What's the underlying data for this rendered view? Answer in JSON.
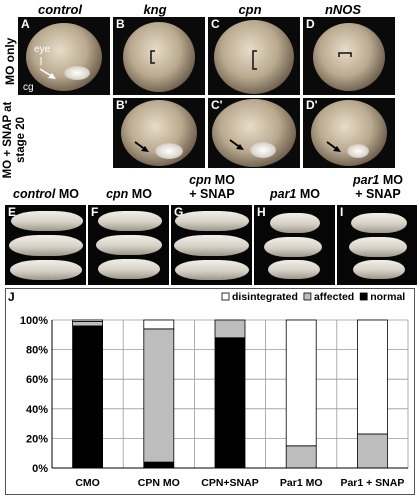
{
  "top_columns": [
    {
      "label": "control"
    },
    {
      "label": "kng"
    },
    {
      "label": "cpn"
    },
    {
      "label": "nNOS"
    }
  ],
  "row_labels": [
    "MO only",
    "MO + SNAP at stage 20"
  ],
  "panels_top": [
    "A",
    "B",
    "C",
    "D"
  ],
  "panels_mid": [
    "B'",
    "C'",
    "D'"
  ],
  "annotations": {
    "eye": "eye",
    "cg": "cg"
  },
  "bottom_panels": [
    {
      "letter": "E",
      "title_italic": "control",
      "title_rest": " MO",
      "line2": ""
    },
    {
      "letter": "F",
      "title_italic": "cpn",
      "title_rest": " MO",
      "line2": ""
    },
    {
      "letter": "G",
      "title_italic": "cpn",
      "title_rest": " MO",
      "line2": "+ SNAP"
    },
    {
      "letter": "H",
      "title_italic": "par1",
      "title_rest": " MO",
      "line2": ""
    },
    {
      "letter": "I",
      "title_italic": "par1",
      "title_rest": " MO",
      "line2": "+ SNAP"
    }
  ],
  "chart_letter": "J",
  "chart_data": {
    "type": "bar",
    "stacked": true,
    "categories": [
      "CMO",
      "CPN MO",
      "CPN+SNAP",
      "Par1 MO",
      "Par1 + SNAP"
    ],
    "series": [
      {
        "name": "normal",
        "color": "#000000",
        "values": [
          96,
          4,
          88,
          0,
          0
        ]
      },
      {
        "name": "affected",
        "color": "#bdbdbd",
        "values": [
          3,
          90,
          12,
          15,
          23
        ]
      },
      {
        "name": "disintegrated",
        "color": "#ffffff",
        "values": [
          1,
          6,
          0,
          85,
          77
        ]
      }
    ],
    "yticks": [
      "0%",
      "20%",
      "40%",
      "60%",
      "80%",
      "100%"
    ],
    "ylim": [
      0,
      100
    ],
    "legend_position": "top-right",
    "grid": true
  }
}
